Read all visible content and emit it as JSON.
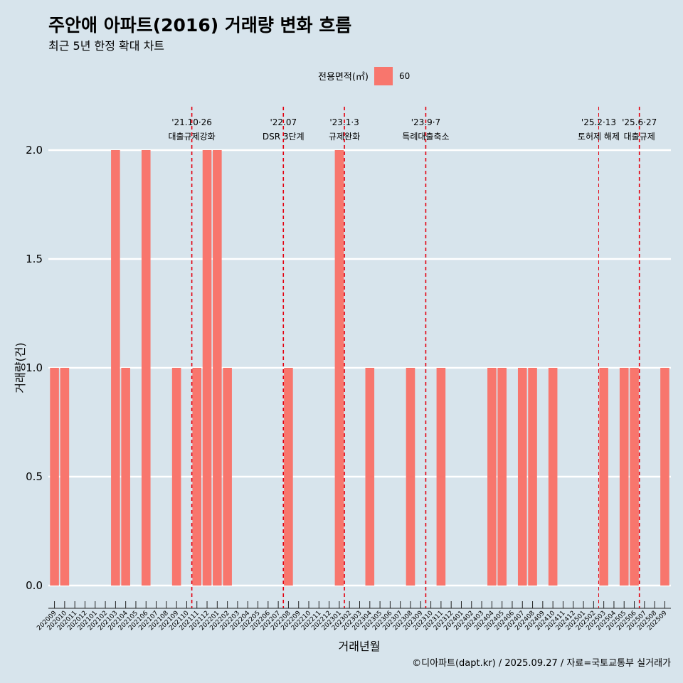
{
  "chart_data": {
    "type": "bar",
    "title": "주안애 아파트(2016) 거래량 변화 흐름",
    "subtitle": "최근 5년 한정 확대 차트",
    "xlabel": "거래년월",
    "ylabel": "거래량(건)",
    "ylim": [
      0,
      2
    ],
    "yticks": [
      "0.0",
      "0.5",
      "1.0",
      "1.5",
      "2.0"
    ],
    "legend": {
      "title": "전용면적(㎡)",
      "entries": [
        {
          "label": "60",
          "color": "#f8766d"
        }
      ]
    },
    "categories": [
      "202009",
      "202010",
      "202011",
      "202012",
      "202101",
      "202102",
      "202103",
      "202104",
      "202105",
      "202106",
      "202107",
      "202108",
      "202109",
      "202110",
      "202111",
      "202112",
      "202201",
      "202202",
      "202203",
      "202204",
      "202205",
      "202206",
      "202207",
      "202208",
      "202209",
      "202210",
      "202211",
      "202212",
      "202301",
      "202302",
      "202303",
      "202304",
      "202305",
      "202306",
      "202307",
      "202308",
      "202309",
      "202310",
      "202311",
      "202312",
      "202401",
      "202402",
      "202403",
      "202404",
      "202405",
      "202406",
      "202407",
      "202408",
      "202409",
      "202410",
      "202411",
      "202412",
      "202501",
      "202502",
      "202503",
      "202504",
      "202505",
      "202506",
      "202507",
      "202508",
      "202509"
    ],
    "series": [
      {
        "name": "60",
        "color": "#f8766d",
        "values": [
          1,
          1,
          0,
          0,
          0,
          0,
          2,
          1,
          0,
          2,
          0,
          0,
          1,
          0,
          1,
          2,
          2,
          1,
          0,
          0,
          0,
          0,
          0,
          1,
          0,
          0,
          0,
          0,
          2,
          0,
          0,
          1,
          0,
          0,
          0,
          1,
          0,
          0,
          1,
          0,
          0,
          0,
          0,
          1,
          1,
          0,
          1,
          1,
          0,
          1,
          0,
          0,
          0,
          0,
          1,
          0,
          1,
          1,
          0,
          0,
          1
        ]
      }
    ],
    "events": [
      {
        "position": 13.5,
        "date": "'21.10·26",
        "label": "대출규제강화",
        "date_size": 12
      },
      {
        "position": 22.5,
        "date": "'22.07",
        "label": "DSR 3단계",
        "date_size": 12
      },
      {
        "position": 28.5,
        "date": "'23.1·3",
        "label": "규제완화",
        "date_size": 12
      },
      {
        "position": 36.5,
        "date": "'23.9·7",
        "label": "특례대출축소",
        "date_size": 12
      },
      {
        "position": 53.5,
        "date": "'25.2·13",
        "label": "토허제 해제",
        "date_size": 10
      },
      {
        "position": 57.5,
        "date": "'25.6·27",
        "label": "대출규제",
        "date_size": 12
      }
    ],
    "caption": "©디아파트(dapt.kr) / 2025.09.27 / 자료=국토교통부 실거래가"
  }
}
